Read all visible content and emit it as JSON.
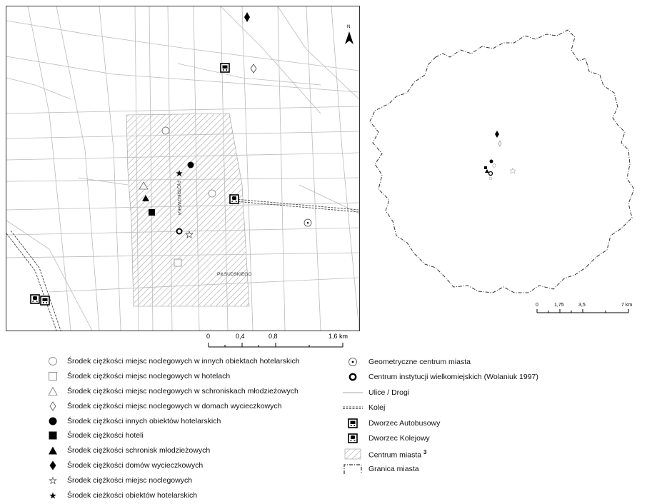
{
  "map": {
    "street_labels": [
      "PIOTRKOWSKA",
      "PIŁSUDSKIEGO"
    ],
    "north_label": "N"
  },
  "main_scale": {
    "ticks": [
      "0",
      "0,4",
      "0,8",
      "1,6 km"
    ]
  },
  "overview_scale": {
    "ticks": [
      "0",
      "1,75",
      "3,5",
      "7 km"
    ]
  },
  "legend_left": [
    {
      "symbol": "circle-open",
      "label": "Środek ciężkości miejsc noclegowych w innych obiektach hotelarskich"
    },
    {
      "symbol": "square-open",
      "label": "Środek ciężkości miejsc noclegowych w hotelach"
    },
    {
      "symbol": "triangle-open",
      "label": "Środek ciężkości miejsc noclegowych w schroniskach młodzieżowych"
    },
    {
      "symbol": "diamond-open",
      "label": "Środek ciężkości miejsc noclegowych w domach wycieczkowych"
    },
    {
      "symbol": "circle-filled",
      "label": "Środek ciężkości innych obiektów hotelarskich"
    },
    {
      "symbol": "square-filled",
      "label": "Środek ciężkości hoteli"
    },
    {
      "symbol": "triangle-filled",
      "label": "Środek ciężkości schronisk młodzieżowych"
    },
    {
      "symbol": "diamond-filled",
      "label": "Środek ciężkości domów wycieczkowych"
    },
    {
      "symbol": "star-open",
      "label": "Środek ciężkości miejsc noclegowych"
    },
    {
      "symbol": "star-filled",
      "label": "Środek cieżkości obiektów hotelarskich"
    }
  ],
  "legend_right": [
    {
      "symbol": "circle-dot",
      "label": "Geometryczne centrum miasta"
    },
    {
      "symbol": "ring-bold",
      "label": "Centrum instytucji wielkomiejskich (Wolaniuk 1997)"
    },
    {
      "symbol": "line-thin",
      "label": "Ulice / Drogi"
    },
    {
      "symbol": "line-rail",
      "label": "Kolej"
    },
    {
      "symbol": "bus-icon",
      "label": "Dworzec Autobusowy"
    },
    {
      "symbol": "train-icon",
      "label": "Dworzec Kolejowy"
    },
    {
      "symbol": "hatch",
      "label": "Centrum miasta",
      "superscript": "3"
    },
    {
      "symbol": "boundary",
      "label": "Granica miasta"
    }
  ]
}
